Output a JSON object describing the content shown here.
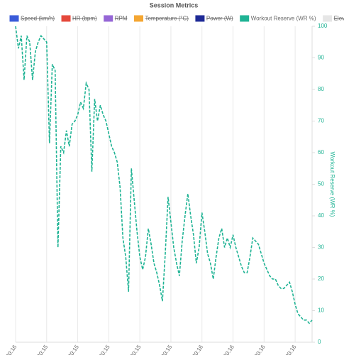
{
  "chart_data": {
    "type": "line",
    "title": "Session Metrics",
    "series": [
      {
        "name": "Speed (km/h)",
        "color": "#3a5bd9",
        "hidden": true
      },
      {
        "name": "HR (bpm)",
        "color": "#e5483b",
        "hidden": true
      },
      {
        "name": "RPM",
        "color": "#9566d6",
        "hidden": true
      },
      {
        "name": "Temperature (°C)",
        "color": "#f4a632",
        "hidden": true
      },
      {
        "name": "Power (W)",
        "color": "#1e2a96",
        "hidden": true
      },
      {
        "name": "Workout Reserve (WR %)",
        "color": "#1fb394",
        "hidden": false,
        "axis": "y2",
        "dashed": true,
        "values": [
          100,
          93,
          97,
          83,
          97,
          95,
          83,
          92,
          95,
          97,
          96,
          95,
          63,
          88,
          86,
          30,
          62,
          60,
          67,
          62,
          69,
          70,
          72,
          76,
          74,
          82,
          80,
          54,
          77,
          70,
          75,
          72,
          70,
          66,
          62,
          60,
          57,
          49,
          33,
          27,
          16,
          55,
          45,
          35,
          27,
          23,
          27,
          36,
          31,
          25,
          22,
          18,
          13,
          28,
          46,
          38,
          30,
          25,
          21,
          32,
          40,
          47,
          40,
          34,
          25,
          30,
          41,
          35,
          28,
          25,
          20,
          27,
          33,
          36,
          30,
          33,
          30,
          34,
          30,
          27,
          24,
          22,
          22,
          27,
          33,
          32,
          31,
          28,
          25,
          23,
          21,
          20,
          20,
          18,
          17,
          17,
          18,
          19,
          16,
          12,
          9,
          8,
          7,
          7,
          6,
          7
        ]
      },
      {
        "name": "Elevation (m)",
        "color": "#e6e6e6",
        "hidden": true
      }
    ],
    "categories": [
      "20:16",
      null,
      null,
      null,
      null,
      null,
      null,
      null,
      null,
      null,
      null,
      "20:15",
      null,
      null,
      null,
      null,
      null,
      null,
      null,
      null,
      null,
      null,
      "20:15",
      null,
      null,
      null,
      null,
      null,
      null,
      null,
      null,
      null,
      null,
      "20:15",
      null,
      null,
      null,
      null,
      null,
      null,
      null,
      null,
      null,
      null,
      "20:15",
      null,
      null,
      null,
      null,
      null,
      null,
      null,
      null,
      null,
      null,
      "20:15",
      null,
      null,
      null,
      null,
      null,
      null,
      null,
      null,
      null,
      null,
      "20:16",
      null,
      null,
      null,
      null,
      null,
      null,
      null,
      null,
      null,
      null,
      "20:16",
      null,
      null,
      null,
      null,
      null,
      null,
      null,
      null,
      null,
      null,
      "20:16",
      null,
      null,
      null,
      null,
      null,
      null,
      null,
      null,
      null,
      null,
      "20:16",
      null,
      null,
      null,
      null,
      null,
      null
    ],
    "y2_label": "Workout Reserve (WR %)",
    "y2lim": [
      0,
      100
    ],
    "y2ticks": [
      0,
      10,
      20,
      30,
      40,
      50,
      60,
      70,
      80,
      90,
      100
    ],
    "grid_x": true
  }
}
